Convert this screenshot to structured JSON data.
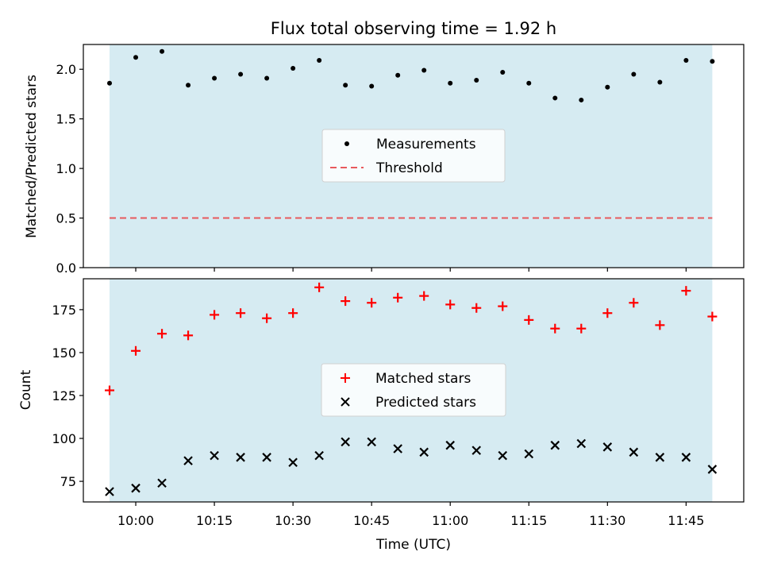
{
  "chart_data": {
    "type": "scatter",
    "title": "Flux total observing time = 1.92 h",
    "xlabel": "Time (UTC)",
    "colors": {
      "span": "#add8e6",
      "measurements": "#000000",
      "threshold": "#e8595c",
      "matched": "#ff0000",
      "predicted": "#000000"
    },
    "x_tick_labels": [
      "10:00",
      "10:15",
      "10:30",
      "10:45",
      "11:00",
      "11:15",
      "11:30",
      "11:45"
    ],
    "x_tick_minutes": [
      600,
      615,
      630,
      645,
      660,
      675,
      690,
      705
    ],
    "x_time_labels": [
      "09:55",
      "10:00",
      "10:05",
      "10:10",
      "10:15",
      "10:20",
      "10:25",
      "10:30",
      "10:35",
      "10:40",
      "10:45",
      "10:50",
      "10:55",
      "11:00",
      "11:05",
      "11:10",
      "11:15",
      "11:20",
      "11:25",
      "11:30",
      "11:35",
      "11:40",
      "11:45",
      "11:50"
    ],
    "x_minutes": [
      595,
      600,
      605,
      610,
      615,
      620,
      625,
      630,
      635,
      640,
      645,
      650,
      655,
      660,
      665,
      670,
      675,
      680,
      685,
      690,
      695,
      700,
      705,
      710
    ],
    "xlim_minutes": [
      590,
      716
    ],
    "observing_span_minutes": [
      595,
      710
    ],
    "top_panel": {
      "ylabel": "Matched/Predicted stars",
      "ylim": [
        0,
        2.25
      ],
      "y_ticks": [
        0.0,
        0.5,
        1.0,
        1.5,
        2.0
      ],
      "y_tick_labels": [
        "0.0",
        "0.5",
        "1.0",
        "1.5",
        "2.0"
      ],
      "threshold": 0.5,
      "legend_location": "center",
      "series": [
        {
          "name": "Measurements",
          "marker": "dot",
          "values": [
            1.86,
            2.12,
            2.18,
            1.84,
            1.91,
            1.95,
            1.91,
            2.01,
            2.09,
            1.84,
            1.83,
            1.94,
            1.99,
            1.86,
            1.89,
            1.97,
            1.86,
            1.71,
            1.69,
            1.82,
            1.95,
            1.87,
            2.09,
            2.08
          ]
        },
        {
          "name": "Threshold",
          "marker": "dashed-line",
          "value": 0.5
        }
      ]
    },
    "bottom_panel": {
      "ylabel": "Count",
      "ylim": [
        63,
        193
      ],
      "y_ticks": [
        75,
        100,
        125,
        150,
        175
      ],
      "y_tick_labels": [
        "75",
        "100",
        "125",
        "150",
        "175"
      ],
      "legend_location": "center",
      "series": [
        {
          "name": "Matched stars",
          "marker": "plus",
          "values": [
            128,
            151,
            161,
            160,
            172,
            173,
            170,
            173,
            188,
            180,
            179,
            182,
            183,
            178,
            176,
            177,
            169,
            164,
            164,
            173,
            179,
            166,
            186,
            171
          ]
        },
        {
          "name": "Predicted stars",
          "marker": "x",
          "values": [
            69,
            71,
            74,
            87,
            90,
            89,
            89,
            86,
            90,
            98,
            98,
            94,
            92,
            96,
            93,
            90,
            91,
            96,
            97,
            95,
            92,
            89,
            89,
            82
          ]
        }
      ]
    }
  }
}
